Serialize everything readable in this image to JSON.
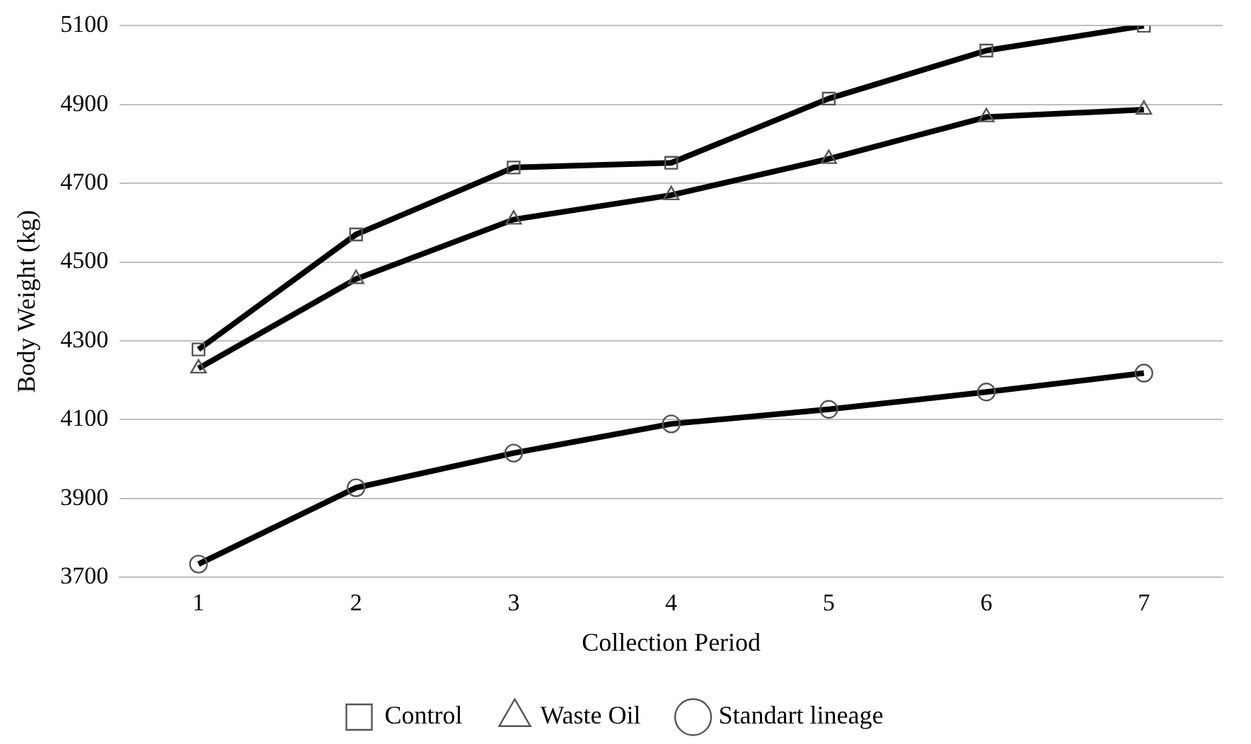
{
  "chart_data": {
    "type": "line",
    "xlabel": "Collection Period",
    "ylabel": "Body Weight (kg)",
    "categories": [
      "1",
      "2",
      "3",
      "4",
      "5",
      "6",
      "7"
    ],
    "ylim": [
      3700,
      5100
    ],
    "yticks": [
      3700,
      3900,
      4100,
      4300,
      4500,
      4700,
      4900,
      5100
    ],
    "grid": "y",
    "legend": "bottom",
    "line_style": "solid",
    "series": [
      {
        "name": "Control",
        "color": "#000000",
        "marker": "square",
        "values": [
          4278,
          4570,
          4740,
          4752,
          4915,
          5037,
          5100
        ]
      },
      {
        "name": "Waste Oil",
        "color": "#000000",
        "marker": "triangle",
        "values": [
          4230,
          4457,
          4608,
          4670,
          4762,
          4868,
          4887
        ]
      },
      {
        "name": "Standart lineage",
        "color": "#000000",
        "marker": "circle",
        "values": [
          3733,
          3927,
          4015,
          4089,
          4126,
          4170,
          4218
        ]
      }
    ]
  }
}
